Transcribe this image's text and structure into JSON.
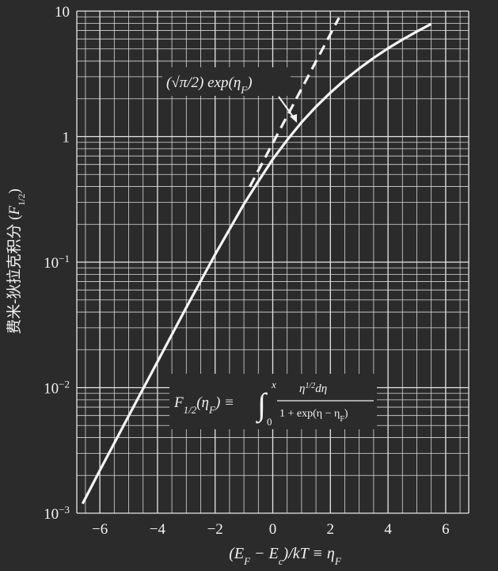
{
  "chart_data": {
    "type": "line",
    "xlabel": "(E_F − E_c)/kT ≡ η_F",
    "ylabel": "费米-狄拉克积分 (F_1/2)",
    "xlim": [
      -6.8,
      6.8
    ],
    "ylim": [
      0.001,
      10
    ],
    "yscale": "log",
    "grid": true,
    "x_ticks": [
      "−6",
      "−4",
      "−2",
      "0",
      "2",
      "4",
      "6"
    ],
    "x_tick_values": [
      -6,
      -4,
      -2,
      0,
      2,
      4,
      6
    ],
    "y_ticks": [
      {
        "value": 0.001,
        "base": "10",
        "exp": "−3"
      },
      {
        "value": 0.01,
        "base": "10",
        "exp": "−2"
      },
      {
        "value": 0.1,
        "base": "10",
        "exp": "−1"
      },
      {
        "value": 1,
        "base": "1",
        "exp": ""
      },
      {
        "value": 10,
        "base": "10",
        "exp": ""
      }
    ],
    "series": [
      {
        "style": "solid",
        "x": [
          -6.6,
          -6,
          -5,
          -4,
          -3,
          -2,
          -1,
          -0.5,
          0,
          0.5,
          1,
          1.5,
          2,
          2.5,
          3,
          3.5,
          4,
          4.5,
          5,
          5.5
        ],
        "y": [
          0.00119,
          0.00219,
          0.00595,
          0.0161,
          0.0435,
          0.115,
          0.29,
          0.44,
          0.66,
          0.94,
          1.3,
          1.73,
          2.24,
          2.83,
          3.49,
          4.23,
          5.05,
          5.93,
          6.87,
          7.9
        ]
      },
      {
        "style": "dashed",
        "x": [
          -0.8,
          -0.5,
          0,
          0.5,
          1,
          1.5,
          2,
          2.3
        ],
        "y": [
          0.398,
          0.537,
          0.886,
          1.46,
          2.41,
          3.97,
          6.55,
          8.84
        ]
      }
    ],
    "annotations": {
      "approximation": "(√π/2) exp(η_F)",
      "integral_definition": "F_1/2(η_F) ≡ ∫₀^∞ η^{1/2}dη / (1 + exp(η − η_F))"
    }
  }
}
